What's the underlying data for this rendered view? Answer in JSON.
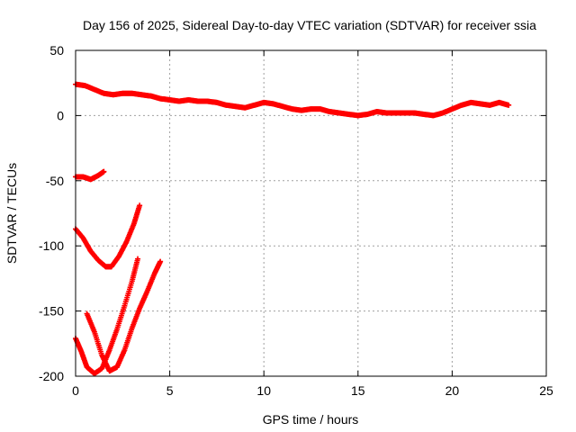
{
  "chart_data": {
    "type": "scatter",
    "title": "Day 156 of 2025, Sidereal Day-to-day VTEC variation (SDTVAR) for receiver ssia",
    "xlabel": "GPS time / hours",
    "ylabel": "SDTVAR / TECUs",
    "xlim": [
      0,
      25
    ],
    "ylim": [
      -200,
      50
    ],
    "xticks": [
      0,
      5,
      10,
      15,
      20,
      25
    ],
    "yticks": [
      -200,
      -150,
      -100,
      -50,
      0,
      50
    ],
    "grid": true,
    "marker": "+",
    "color": "#ff0000",
    "series": [
      {
        "points": [
          [
            0,
            24
          ],
          [
            0.5,
            23
          ],
          [
            1,
            20
          ],
          [
            1.5,
            17
          ],
          [
            2,
            16
          ],
          [
            2.5,
            17
          ],
          [
            3,
            17
          ],
          [
            3.5,
            16
          ],
          [
            4,
            15
          ],
          [
            4.5,
            13
          ],
          [
            5,
            12
          ],
          [
            5.5,
            11
          ],
          [
            6,
            12
          ],
          [
            6.5,
            11
          ],
          [
            7,
            11
          ],
          [
            7.5,
            10
          ],
          [
            8,
            8
          ],
          [
            8.5,
            7
          ],
          [
            9,
            6
          ],
          [
            9.5,
            8
          ],
          [
            10,
            10
          ],
          [
            10.5,
            9
          ],
          [
            11,
            7
          ],
          [
            11.5,
            5
          ],
          [
            12,
            4
          ],
          [
            12.5,
            5
          ],
          [
            13,
            5
          ],
          [
            13.5,
            3
          ],
          [
            14,
            2
          ],
          [
            14.5,
            1
          ],
          [
            15,
            0
          ],
          [
            15.5,
            1
          ],
          [
            16,
            3
          ],
          [
            16.5,
            2
          ],
          [
            17,
            2
          ],
          [
            17.5,
            2
          ],
          [
            18,
            2
          ],
          [
            18.5,
            1
          ],
          [
            19,
            0
          ],
          [
            19.5,
            2
          ],
          [
            20,
            5
          ],
          [
            20.5,
            8
          ],
          [
            21,
            10
          ],
          [
            21.5,
            9
          ],
          [
            22,
            8
          ],
          [
            22.5,
            10
          ],
          [
            23,
            8
          ]
        ]
      },
      {
        "points": [
          [
            0,
            -47
          ],
          [
            0.4,
            -47
          ],
          [
            0.8,
            -49
          ],
          [
            1.2,
            -46
          ],
          [
            1.5,
            -43
          ]
        ]
      },
      {
        "points": [
          [
            0,
            -87
          ],
          [
            0.4,
            -94
          ],
          [
            0.8,
            -104
          ],
          [
            1.2,
            -111
          ],
          [
            1.6,
            -116
          ],
          [
            1.9,
            -116
          ],
          [
            2.3,
            -108
          ],
          [
            2.7,
            -97
          ],
          [
            3.1,
            -83
          ],
          [
            3.4,
            -69
          ]
        ]
      },
      {
        "points": [
          [
            0,
            -171
          ],
          [
            0.3,
            -181
          ],
          [
            0.6,
            -193
          ],
          [
            1,
            -198
          ],
          [
            1.4,
            -194
          ],
          [
            1.8,
            -180
          ],
          [
            2.2,
            -164
          ],
          [
            2.6,
            -146
          ],
          [
            3,
            -127
          ],
          [
            3.3,
            -110
          ]
        ]
      },
      {
        "points": [
          [
            0.6,
            -152
          ],
          [
            1,
            -166
          ],
          [
            1.4,
            -184
          ],
          [
            1.8,
            -196
          ],
          [
            2.2,
            -193
          ],
          [
            2.6,
            -180
          ],
          [
            3,
            -163
          ],
          [
            3.4,
            -148
          ],
          [
            3.8,
            -135
          ],
          [
            4.2,
            -121
          ],
          [
            4.5,
            -112
          ]
        ]
      }
    ]
  }
}
